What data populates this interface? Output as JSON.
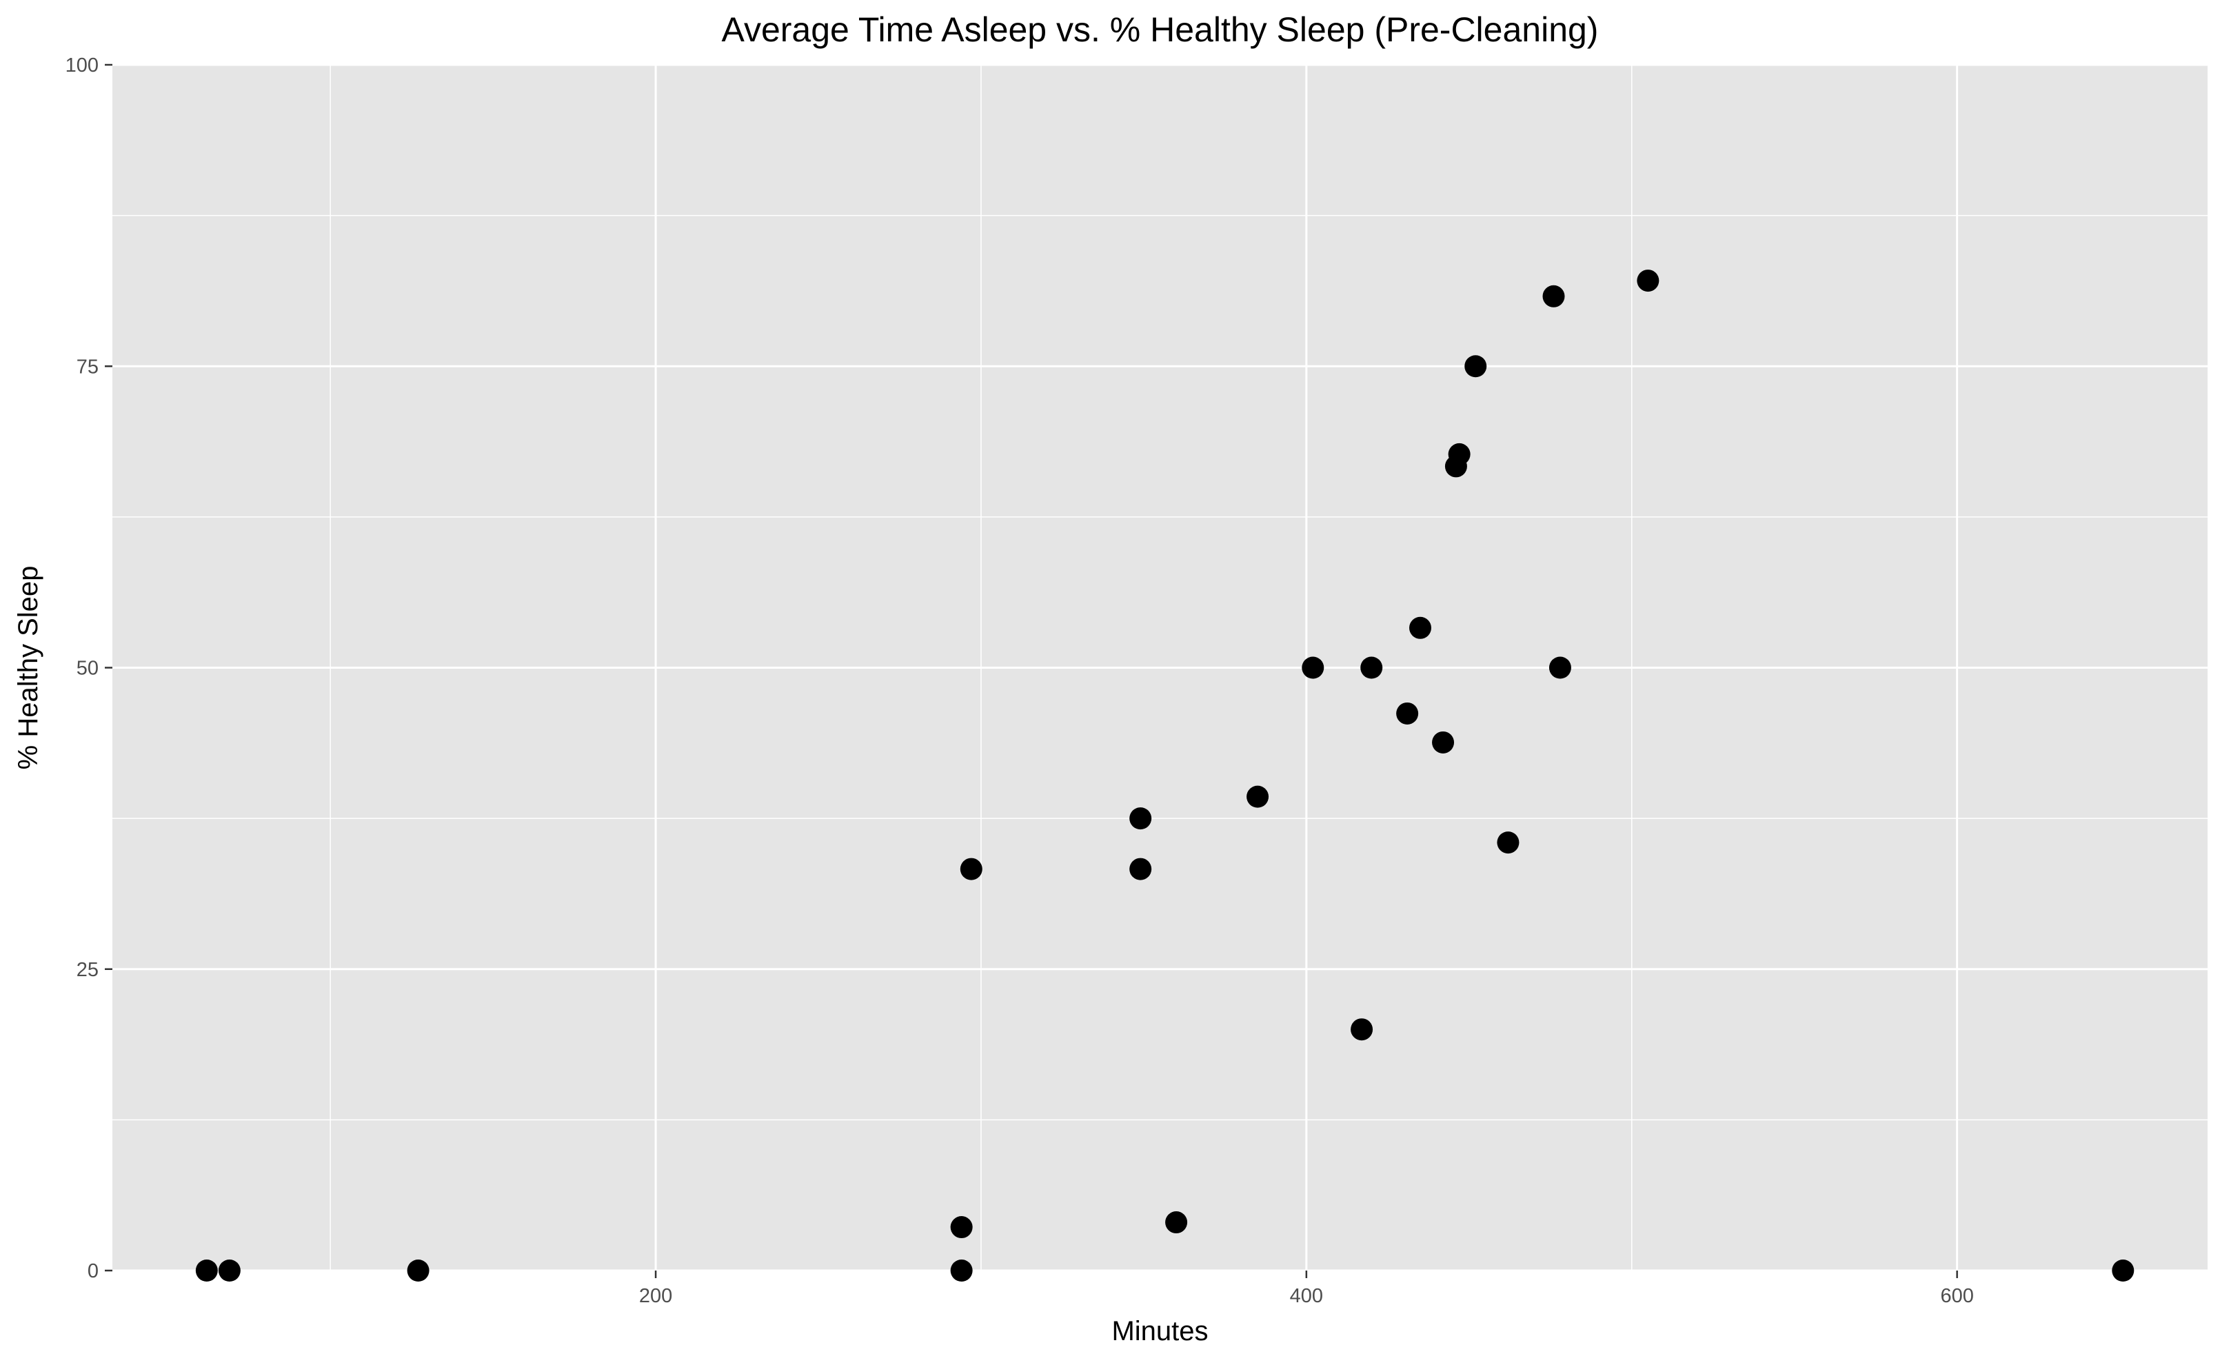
{
  "chart_data": {
    "type": "scatter",
    "title": "Average Time Asleep vs. % Healthy Sleep (Pre-Cleaning)",
    "xlabel": "Minutes",
    "ylabel": "% Healthy Sleep",
    "xlim": [
      33,
      677
    ],
    "ylim": [
      0,
      100
    ],
    "x_ticks": [
      200,
      400,
      600
    ],
    "y_ticks": [
      0,
      25,
      50,
      75,
      100
    ],
    "x_minor_gridlines": [
      100,
      300,
      500
    ],
    "y_minor_gridlines": [
      12.5,
      37.5,
      62.5,
      87.5
    ],
    "grid": true,
    "legend": "none",
    "colors": {
      "panel_background": "#e5e5e5",
      "gridline": "#ffffff",
      "point": "#000000",
      "text": "#000000",
      "tick_text": "#4d4d4d",
      "tick_mark": "#333333"
    },
    "points": [
      {
        "x": 62,
        "y": 0
      },
      {
        "x": 69,
        "y": 0
      },
      {
        "x": 127,
        "y": 0
      },
      {
        "x": 294,
        "y": 3.6
      },
      {
        "x": 294,
        "y": 0
      },
      {
        "x": 297,
        "y": 33.3
      },
      {
        "x": 349,
        "y": 37.5
      },
      {
        "x": 349,
        "y": 33.3
      },
      {
        "x": 360,
        "y": 4.0
      },
      {
        "x": 385,
        "y": 39.3
      },
      {
        "x": 402,
        "y": 50.0
      },
      {
        "x": 417,
        "y": 20.0
      },
      {
        "x": 420,
        "y": 50.0
      },
      {
        "x": 431,
        "y": 46.2
      },
      {
        "x": 435,
        "y": 53.3
      },
      {
        "x": 442,
        "y": 43.8
      },
      {
        "x": 446,
        "y": 66.7
      },
      {
        "x": 447,
        "y": 67.7
      },
      {
        "x": 452,
        "y": 75.0
      },
      {
        "x": 462,
        "y": 35.5
      },
      {
        "x": 476,
        "y": 80.8
      },
      {
        "x": 478,
        "y": 50.0
      },
      {
        "x": 505,
        "y": 82.1
      },
      {
        "x": 651,
        "y": 0
      }
    ]
  }
}
